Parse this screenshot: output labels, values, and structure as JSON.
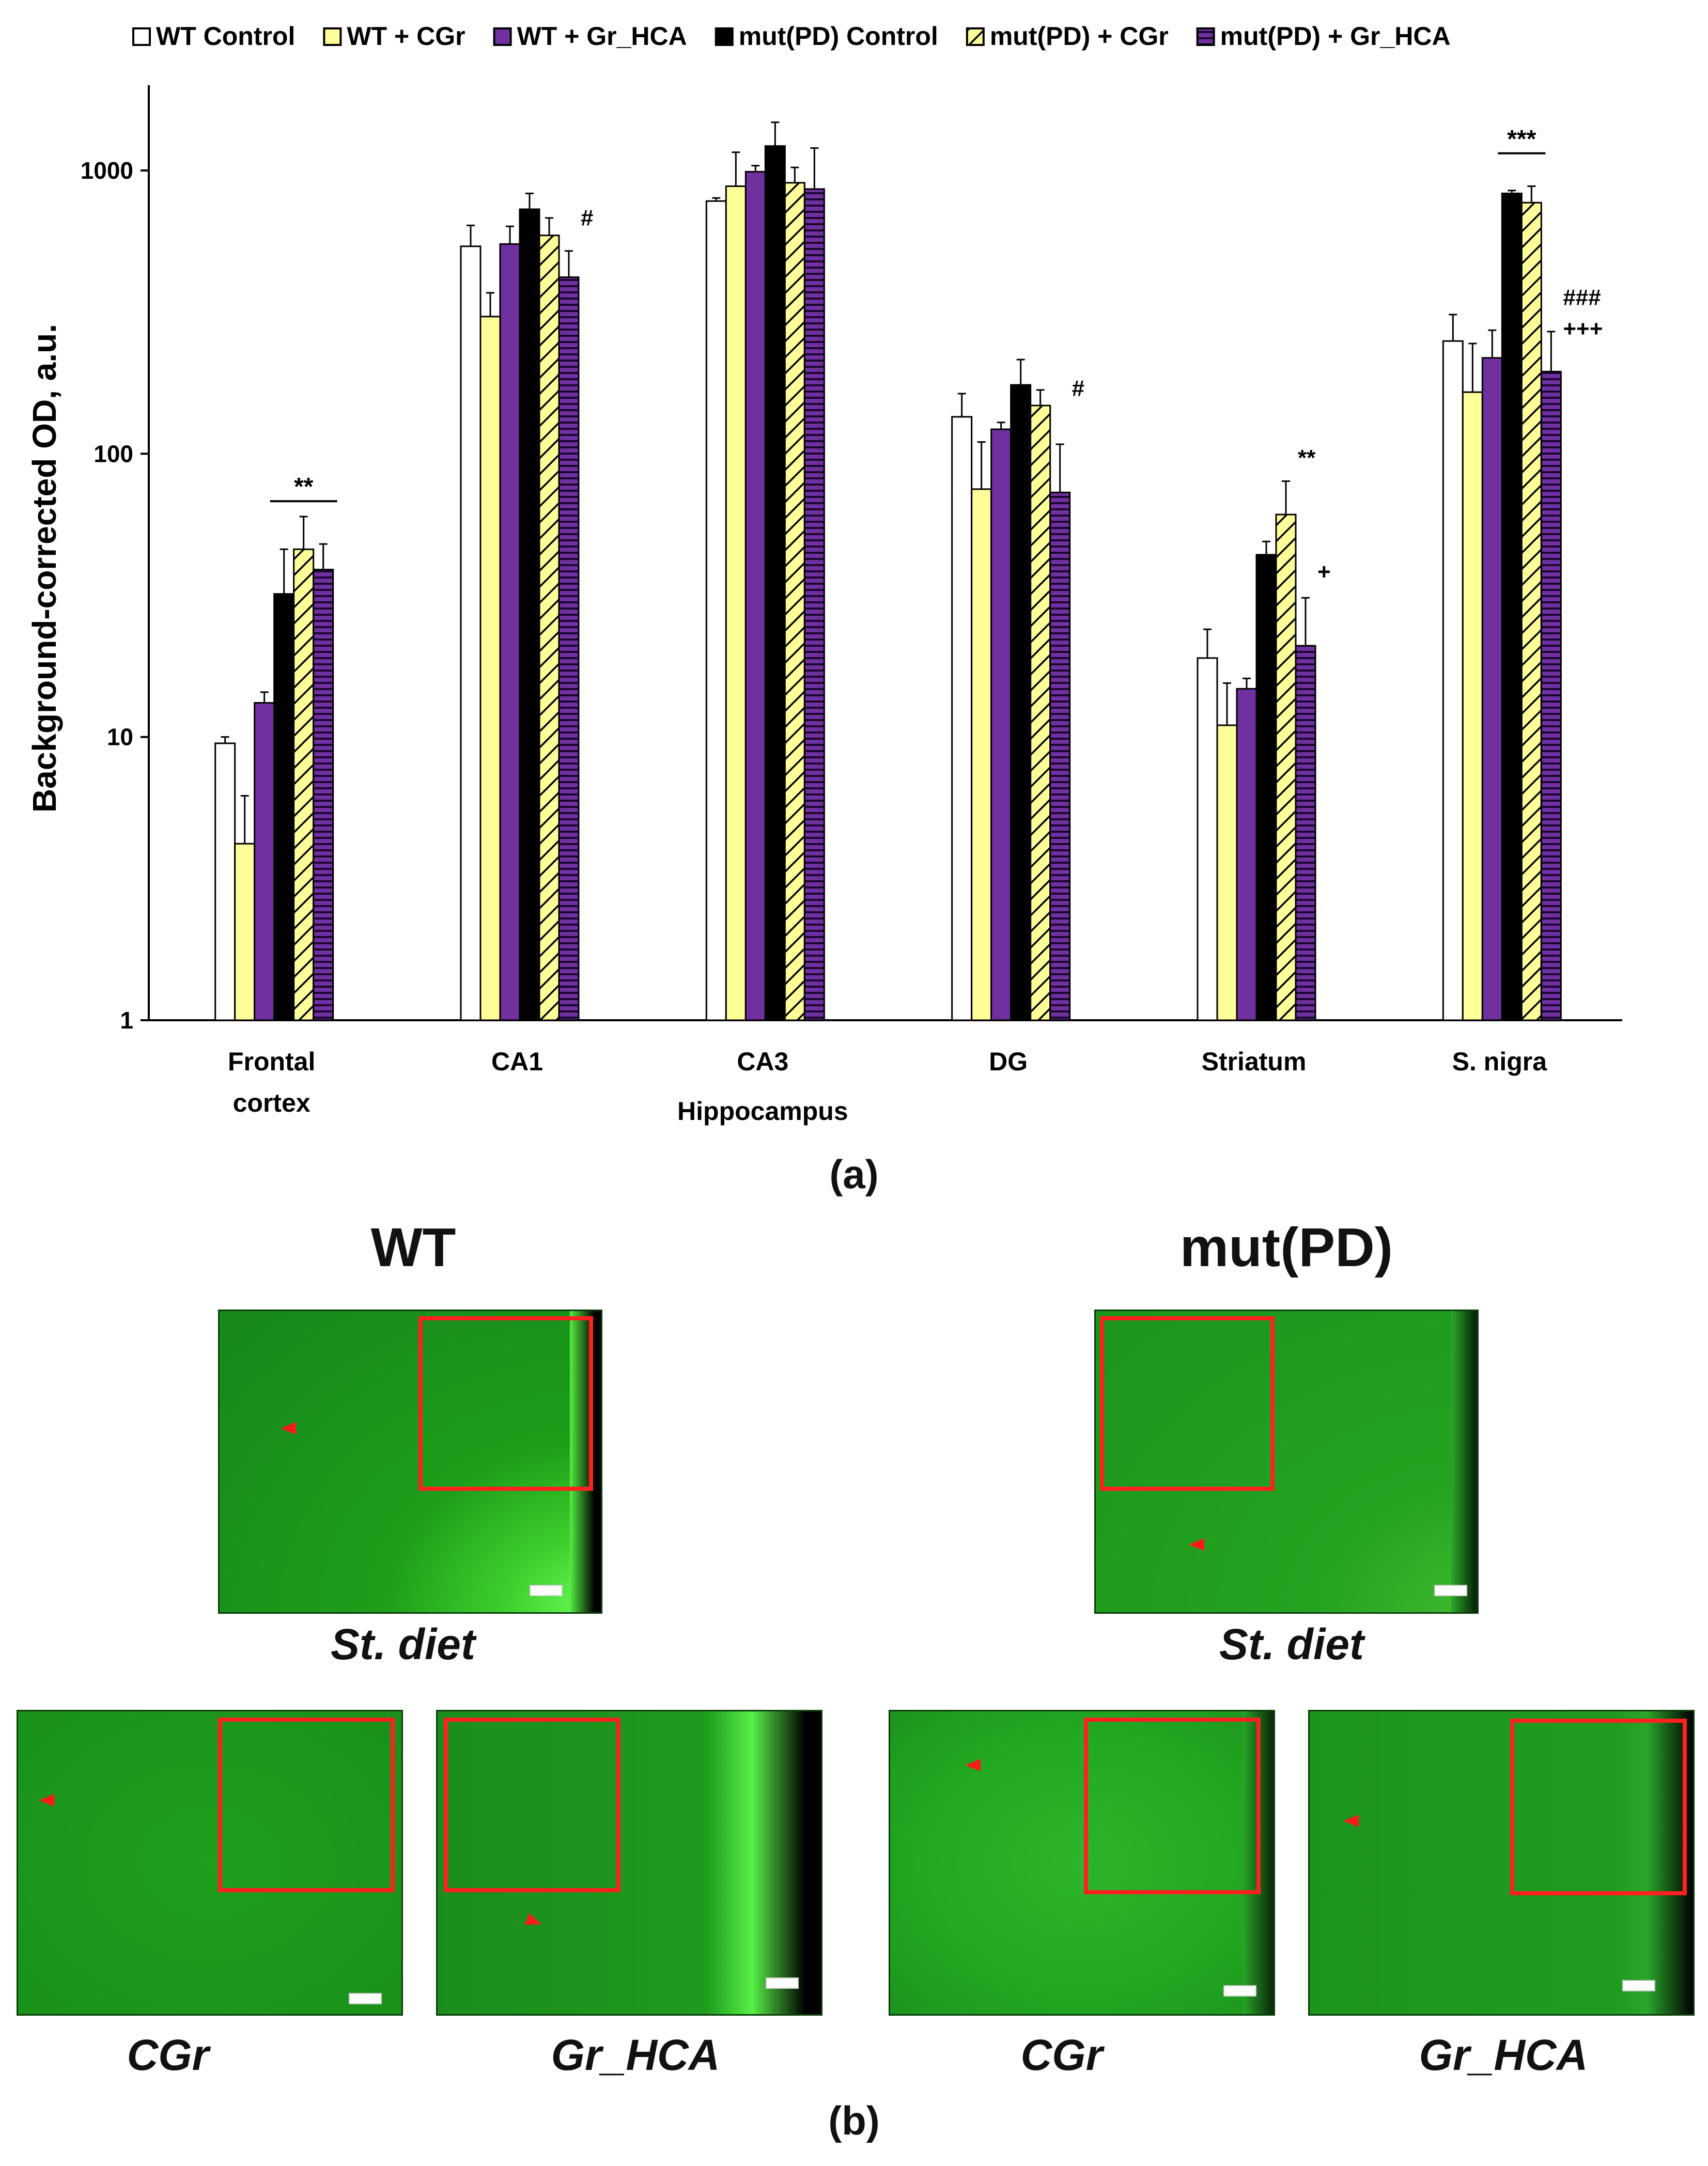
{
  "chart_data": {
    "type": "bar",
    "yscale": "log",
    "ylabel": "Background-corrected OD, a.u.",
    "ylim": [
      1,
      2000
    ],
    "yticks": [
      1,
      10,
      100,
      1000
    ],
    "ytick_labels": [
      "1",
      "10",
      "100",
      "1000"
    ],
    "categories": [
      "Frontal cortex",
      "CA1",
      "CA3",
      "DG",
      "Striatum",
      "S. nigra"
    ],
    "category_label_lines": [
      [
        "Frontal",
        "cortex"
      ],
      [
        "CA1"
      ],
      [
        "CA3"
      ],
      [
        "DG"
      ],
      [
        "Striatum"
      ],
      [
        "S. nigra"
      ]
    ],
    "group_caption": "Hippocampus",
    "series": [
      {
        "name": "WT Control",
        "fill": "#ffffff",
        "pattern": "none",
        "values": [
          9.5,
          540,
          780,
          135,
          19,
          250
        ],
        "errors": [
          0.5,
          100,
          20,
          28,
          5,
          60
        ]
      },
      {
        "name": "WT + CGr",
        "fill": "#ffff99",
        "pattern": "none",
        "values": [
          4.2,
          305,
          880,
          75,
          11,
          165
        ],
        "errors": [
          2.0,
          65,
          280,
          35,
          4.5,
          80
        ]
      },
      {
        "name": "WT + Gr_HCA",
        "fill": "#7030a0",
        "pattern": "none",
        "values": [
          13.2,
          550,
          990,
          122,
          14.8,
          218
        ],
        "errors": [
          1.2,
          85,
          50,
          7,
          1.3,
          55
        ]
      },
      {
        "name": "mut(PD) Control",
        "fill": "#000000",
        "pattern": "none",
        "values": [
          32,
          730,
          1220,
          175,
          44,
          830
        ],
        "errors": [
          14,
          100,
          260,
          40,
          5,
          20
        ]
      },
      {
        "name": "mut(PD) + CGr",
        "fill": "#ffff99",
        "pattern": "diagonal",
        "values": [
          46,
          590,
          905,
          148,
          61,
          770
        ],
        "errors": [
          14,
          90,
          120,
          20,
          19,
          110
        ]
      },
      {
        "name": "mut(PD) + Gr_HCA",
        "fill": "#7030a0",
        "pattern": "horizontal",
        "values": [
          39,
          420,
          860,
          73,
          21,
          195
        ],
        "errors": [
          9,
          100,
          340,
          35,
          10,
          75
        ]
      }
    ],
    "annotations": [
      {
        "text": "**",
        "category": 0,
        "from_series": 3,
        "to_series": 5,
        "value": 68,
        "line": true
      },
      {
        "text": "#",
        "category": 1,
        "series": 5,
        "value": 640
      },
      {
        "text": "#",
        "category": 3,
        "series": 5,
        "value": 160
      },
      {
        "text": "**",
        "category": 4,
        "series": 4,
        "value": 91
      },
      {
        "text": "+",
        "category": 4,
        "series": 5,
        "value": 36
      },
      {
        "text": "***",
        "category": 5,
        "from_series": 3,
        "to_series": 4,
        "value": 1150,
        "line": true
      },
      {
        "text": "###",
        "category": 5,
        "series": 5,
        "value": 335
      },
      {
        "text": "+++",
        "category": 5,
        "series": 5,
        "value": 260
      }
    ]
  },
  "panel_a_label": "(a)",
  "panel_b_label": "(b)",
  "micrographs": {
    "wt_heading": "WT",
    "mut_heading": "mut(PD)",
    "st_diet_label": "St. diet",
    "cgr_label": "CGr",
    "gr_hca_label": "Gr_HCA",
    "tissue_color": "#1fa51f",
    "inset_color": "#ff2020"
  }
}
